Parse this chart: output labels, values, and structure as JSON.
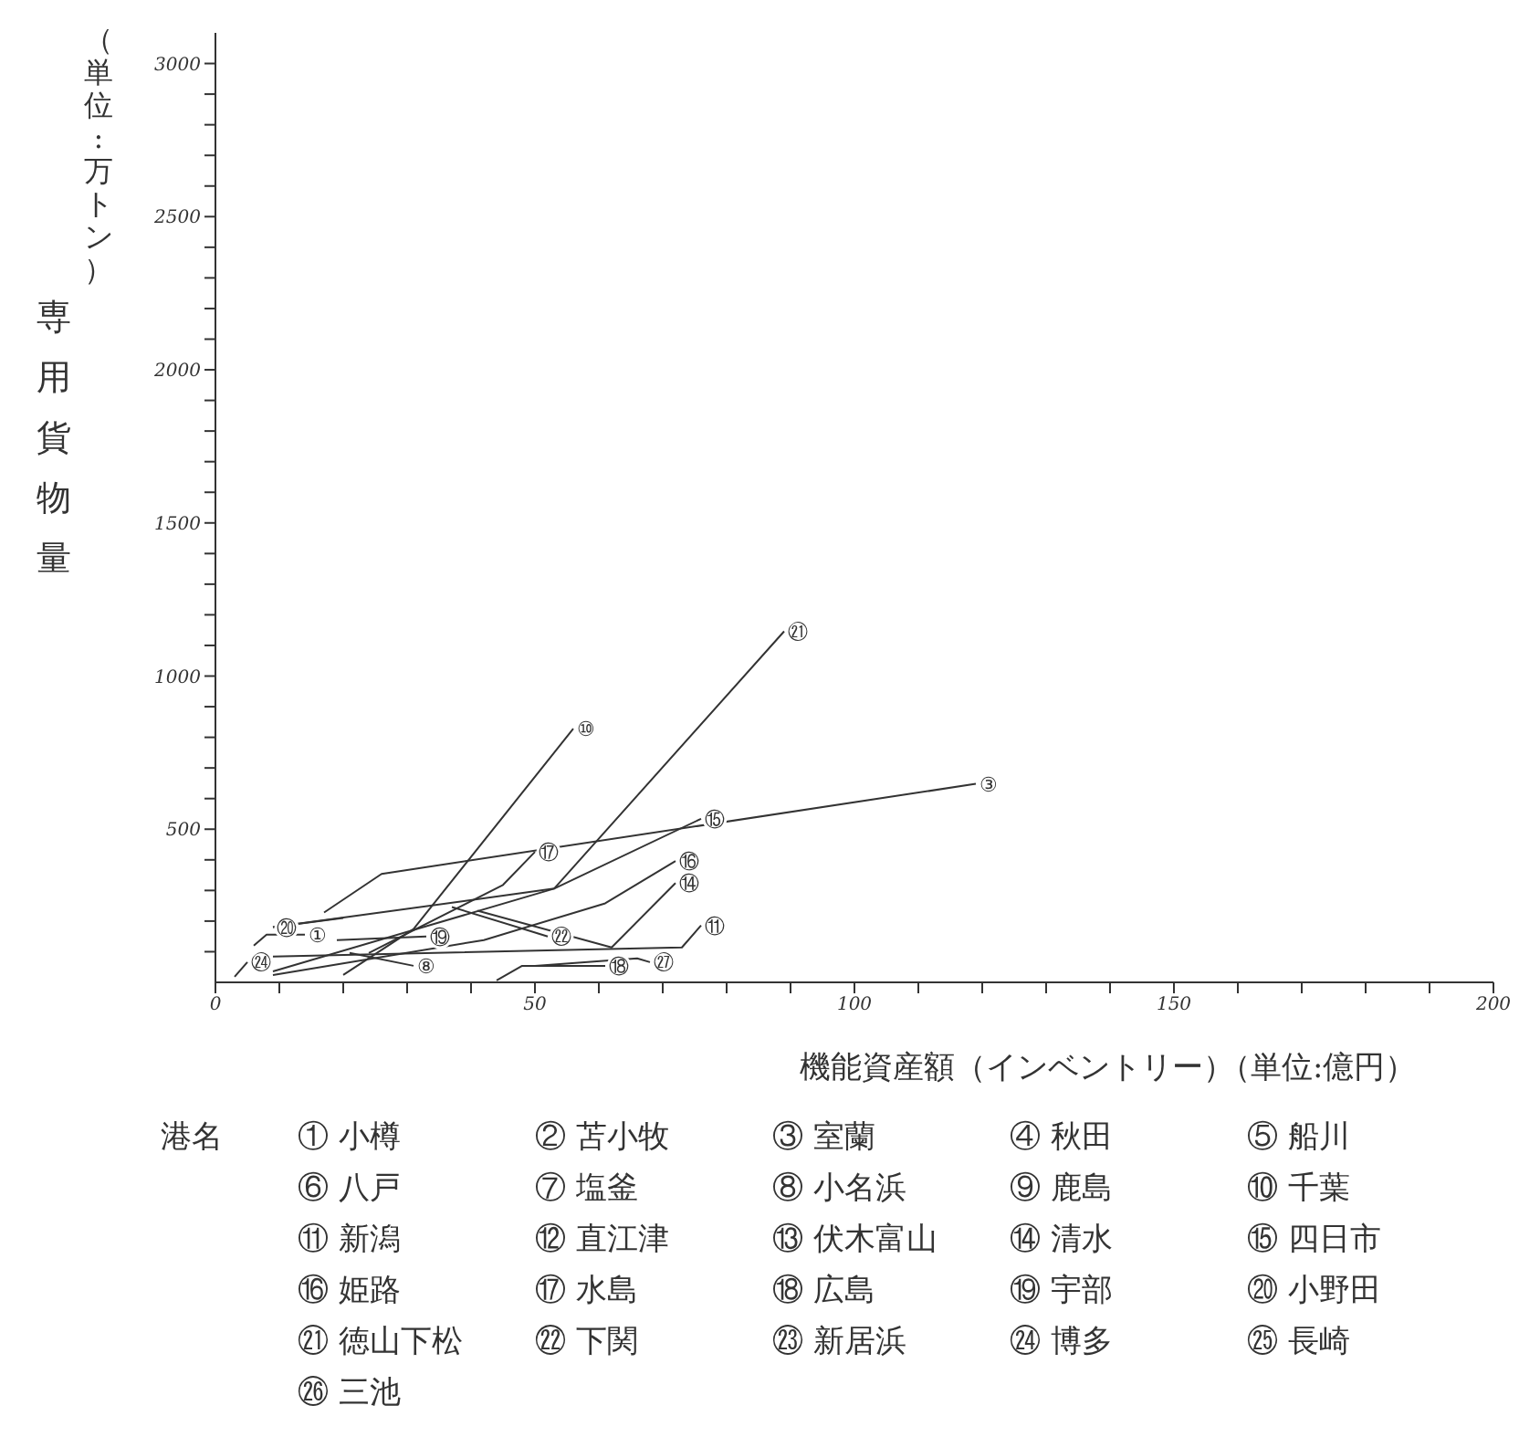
{
  "chart_data": {
    "type": "line",
    "xlabel": "機能資産額（インベントリー）",
    "ylabel": "専用貨物量",
    "xlim": [
      0,
      200
    ],
    "ylim": [
      0,
      3100
    ],
    "xticks": [
      0,
      {
        "value": 10,
        "label": null
      },
      {
        "value": 20,
        "label": null
      },
      {
        "value": 30,
        "label": null
      },
      {
        "value": 40,
        "label": null
      },
      50,
      {
        "value": 60,
        "label": null
      },
      {
        "value": 70,
        "label": null
      },
      {
        "value": 80,
        "label": null
      },
      {
        "value": 90,
        "label": null
      },
      100,
      {
        "value": 110,
        "label": null
      },
      {
        "value": 120,
        "label": null
      },
      {
        "value": 130,
        "label": null
      },
      {
        "value": 140,
        "label": null
      },
      150,
      {
        "value": 160,
        "label": null
      },
      {
        "value": 170,
        "label": null
      },
      {
        "value": 180,
        "label": null
      },
      {
        "value": 190,
        "label": null
      },
      200
    ],
    "yticks": [
      {
        "value": 100,
        "label": null
      },
      {
        "value": 200,
        "label": null
      },
      {
        "value": 300,
        "label": null
      },
      {
        "value": 400,
        "label": null
      },
      500,
      {
        "value": 600,
        "label": null
      },
      {
        "value": 700,
        "label": null
      },
      {
        "value": 800,
        "label": null
      },
      {
        "value": 900,
        "label": null
      },
      1000,
      {
        "value": 1100,
        "label": null
      },
      {
        "value": 1200,
        "label": null
      },
      {
        "value": 1300,
        "label": null
      },
      {
        "value": 1400,
        "label": null
      },
      1500,
      {
        "value": 1600,
        "label": null
      },
      {
        "value": 1700,
        "label": null
      },
      {
        "value": 1800,
        "label": null
      },
      {
        "value": 1900,
        "label": null
      },
      2000,
      {
        "value": 2100,
        "label": null
      },
      {
        "value": 2200,
        "label": null
      },
      {
        "value": 2300,
        "label": null
      },
      {
        "value": 2400,
        "label": null
      },
      2500,
      {
        "value": 2600,
        "label": null
      },
      {
        "value": 2700,
        "label": null
      },
      {
        "value": 2800,
        "label": null
      },
      {
        "value": 2900,
        "label": null
      },
      3000
    ],
    "series": [
      {
        "name": "⑩",
        "color": "#333333",
        "x": [
          56,
          31,
          20
        ],
        "values": [
          828,
          174,
          24
        ]
      },
      {
        "name": "㉑",
        "color": "#333333",
        "x": [
          89,
          53,
          9
        ],
        "values": [
          1146,
          306,
          36
        ]
      },
      {
        "name": "③",
        "color": "#333333",
        "x": [
          119,
          26,
          17
        ],
        "values": [
          648,
          354,
          228
        ]
      },
      {
        "name": "⑮",
        "color": "#333333",
        "x": [
          76,
          53,
          9
        ],
        "values": [
          534,
          306,
          180
        ]
      },
      {
        "name": "⑰",
        "color": "#333333",
        "x": [
          50,
          45,
          24
        ],
        "values": [
          426,
          318,
          96
        ]
      },
      {
        "name": "⑯",
        "color": "#333333",
        "x": [
          72,
          61,
          42,
          9
        ],
        "values": [
          396,
          258,
          138,
          24
        ]
      },
      {
        "name": "⑭",
        "color": "#333333",
        "x": [
          72,
          62,
          41
        ],
        "values": [
          324,
          114,
          234
        ]
      },
      {
        "name": "⑪",
        "color": "#333333",
        "x": [
          76,
          73,
          9
        ],
        "values": [
          186,
          114,
          84
        ]
      },
      {
        "name": "㉒",
        "color": "#333333",
        "x": [
          52,
          37
        ],
        "values": [
          150,
          246
        ]
      },
      {
        "name": "⑳",
        "color": "#333333",
        "x": [
          9,
          20
        ],
        "values": [
          180,
          210
        ]
      },
      {
        "name": "㉔",
        "color": "#333333",
        "x": [
          5,
          3
        ],
        "values": [
          66,
          18
        ]
      },
      {
        "name": "⑱",
        "color": "#333333",
        "x": [
          61,
          48,
          44
        ],
        "values": [
          54,
          54,
          6
        ]
      },
      {
        "name": "㉗",
        "color": "#333333",
        "x": [
          68,
          66,
          50
        ],
        "values": [
          66,
          78,
          54
        ]
      },
      {
        "name": "⑧",
        "color": "#333333",
        "x": [
          31,
          21
        ],
        "values": [
          54,
          96
        ]
      },
      {
        "name": "⑲",
        "color": "#333333",
        "x": [
          33,
          19
        ],
        "values": [
          150,
          138
        ]
      },
      {
        "name": "①",
        "color": "#333333",
        "x": [
          14,
          8,
          6
        ],
        "values": [
          156,
          156,
          120
        ]
      }
    ],
    "annotations": [
      "（単位:万トン）",
      "（単位:億円）",
      "港名",
      "① 小樽",
      "② 苫小牧",
      "③ 室蘭",
      "④ 秋田",
      "⑤ 船川",
      "⑥ 八戸",
      "⑦ 塩釜",
      "⑧ 小名浜",
      "⑨ 鹿島",
      "⑩ 千葉",
      "⑪ 新潟",
      "⑫ 直江津",
      "⑬ 伏木富山",
      "⑭ 清水",
      "⑮ 四日市",
      "⑯ 姫路",
      "⑰ 水島",
      "⑱ 広島",
      "⑲ 宇部",
      "⑳ 小野田",
      "㉑ 徳山下松",
      "㉒ 下関",
      "㉓ 新居浜",
      "㉔ 博多",
      "㉕ 長崎",
      "㉖ 三池"
    ]
  }
}
